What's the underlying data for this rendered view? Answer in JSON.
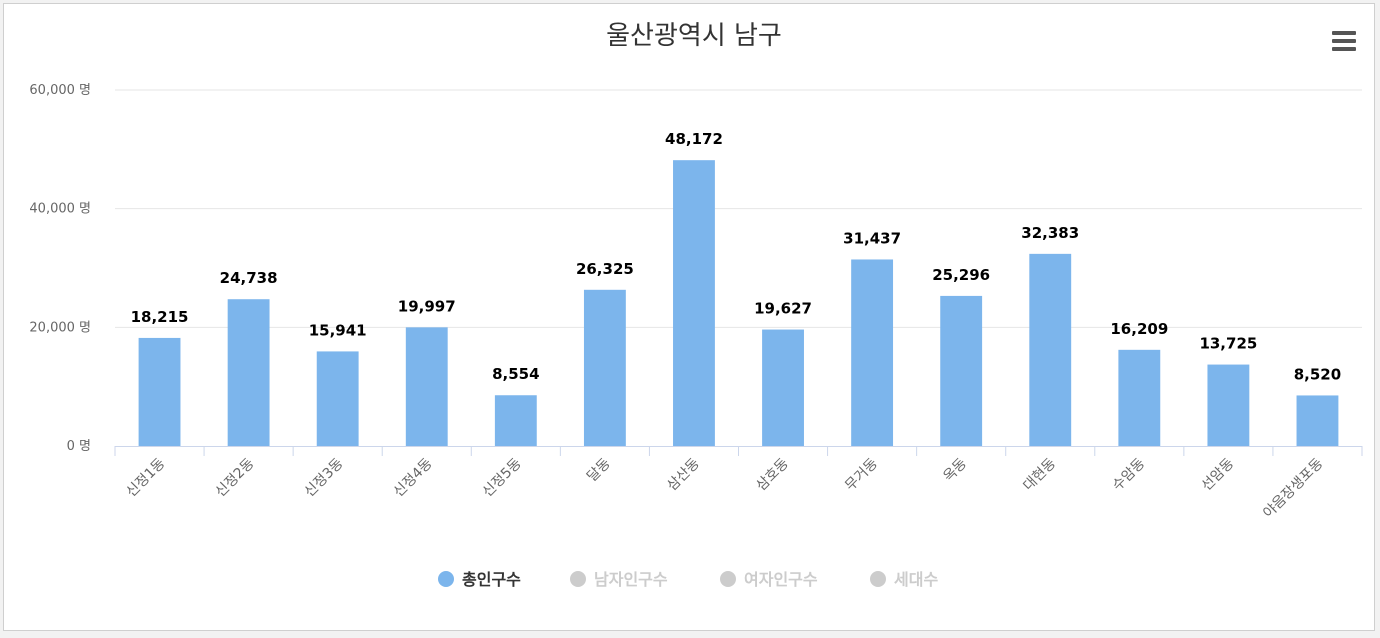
{
  "chart_data": {
    "type": "bar",
    "title": "울산광역시 남구",
    "categories": [
      "신정1동",
      "신정2동",
      "신정3동",
      "신정4동",
      "신정5동",
      "달동",
      "삼산동",
      "삼호동",
      "무거동",
      "옥동",
      "대현동",
      "수암동",
      "선암동",
      "야음장생포동"
    ],
    "series": [
      {
        "name": "총인구수",
        "values": [
          18215,
          24738,
          15941,
          19997,
          8554,
          26325,
          48172,
          19627,
          31437,
          25296,
          32383,
          16209,
          13725,
          8520
        ],
        "value_labels": [
          "18,215",
          "24,738",
          "15,941",
          "19,997",
          "8,554",
          "26,325",
          "48,172",
          "19,627",
          "31,437",
          "25,296",
          "32,383",
          "16,209",
          "13,725",
          "8,520"
        ],
        "visible": true
      }
    ],
    "ylim": [
      0,
      60000
    ],
    "y_ticks": [
      {
        "value": 0,
        "label": "0 명"
      },
      {
        "value": 20000,
        "label": "20,000 명"
      },
      {
        "value": 40000,
        "label": "40,000 명"
      },
      {
        "value": 60000,
        "label": "60,000 명"
      }
    ],
    "grid": true,
    "legend": {
      "placement": "bottom-center",
      "items": [
        {
          "label": "총인구수",
          "active": true
        },
        {
          "label": "남자인구수",
          "active": false
        },
        {
          "label": "여자인구수",
          "active": false
        },
        {
          "label": "세대수",
          "active": false
        }
      ]
    },
    "colors": {
      "bar": "#7cb5ec",
      "legend_inactive": "#cccccc",
      "legend_active_text": "#333333",
      "legend_inactive_text": "#cccccc",
      "grid": "#e6e6e6",
      "axis": "#ccd6eb"
    },
    "menu_icon": "hamburger-menu-icon"
  }
}
